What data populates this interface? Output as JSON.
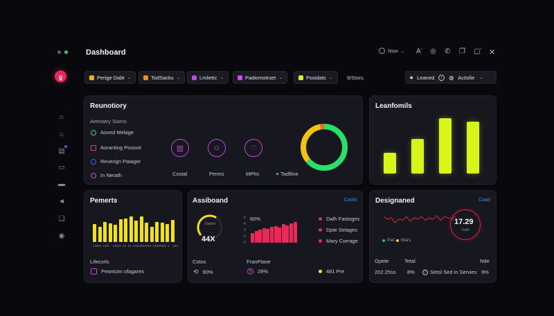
{
  "window": {
    "title": "Dashboard",
    "view_label": "Nsw",
    "user_label": "Leaned",
    "status_label": "Actisfie"
  },
  "filters": [
    {
      "label": "Perige Dabt",
      "color": "#f2b705"
    },
    {
      "label": "TodSacks",
      "color": "#ff8a1a"
    },
    {
      "label": "Lmlietic",
      "color": "#b44bff"
    },
    {
      "label": "Padiomotrset",
      "color": "#d048ff"
    },
    {
      "label": "Posidats",
      "color": "#d8f51a"
    }
  ],
  "filters_extra": "9/Stors",
  "reunotiory": {
    "title": "Reunotiory",
    "subtitle": "Aetmatry Sioms",
    "items": [
      {
        "label": "Aoved Melage",
        "color": "#3dd66b"
      },
      {
        "label": "Aoranting Posiool",
        "color": "#e0399a"
      },
      {
        "label": "Reverign Patager",
        "color": "#3a6cf0"
      },
      {
        "label": "In Nerath",
        "color": "#d84bd0"
      }
    ],
    "icons": [
      {
        "label": "Costal",
        "icon": "chart-icon",
        "glyph": "▥",
        "color": "#c04bd0"
      },
      {
        "label": "Perms",
        "icon": "face-icon",
        "glyph": "☺",
        "color": "#c04bd0"
      },
      {
        "label": "MPhs",
        "icon": "heart-icon",
        "glyph": "♡",
        "color": "#c04bd0"
      }
    ],
    "legend": "Tadfilne",
    "donut": {
      "green": 0.64,
      "yellow": 0.33,
      "orange": 0.03
    }
  },
  "leanfomils": {
    "title": "Leanfomils",
    "values": [
      26,
      43,
      68,
      64
    ]
  },
  "pemerts": {
    "title": "Pemerts",
    "values": [
      52,
      44,
      58,
      54,
      50,
      66,
      68,
      74,
      62,
      74,
      56,
      44,
      58,
      56,
      52,
      64
    ],
    "axis_ticks": [
      "140",
      "10",
      "140",
      "1",
      "140",
      "10",
      "10",
      "15",
      "140",
      "140",
      "140",
      "13",
      "140",
      "100",
      "10",
      "1",
      "100"
    ],
    "footer_label": "Lifecsrls",
    "footer_value": "Peanicim ofagares"
  },
  "assiboand": {
    "title": "Assiboand",
    "link": "Coold",
    "gauge_value": "44X",
    "gauge_caption": "Gasnd",
    "gauge_fraction": 0.45,
    "chart_value": "60%",
    "chart_ticks": [
      "6",
      "4",
      "0",
      "0",
      "0"
    ],
    "values": [
      42,
      48,
      55,
      62,
      58,
      66,
      70,
      64,
      78,
      74,
      82,
      88
    ],
    "legend": [
      {
        "label": "Dalh Fastoges",
        "color": "#f0255a"
      },
      {
        "label": "Dpte Selages",
        "color": "#f0255a"
      },
      {
        "label": "Mary Corrage",
        "color": "#f0255a"
      }
    ],
    "stats": [
      {
        "label": "Cotos",
        "value": "90%",
        "icon": "refresh-icon"
      },
      {
        "label": "FranPlane",
        "value": "29%",
        "icon": "dollar-icon"
      },
      {
        "label": "",
        "value": "481 Pre",
        "icon": "dot-icon"
      }
    ]
  },
  "designaned": {
    "title": "Designaned",
    "link": "Coad",
    "big_value": "17.29",
    "big_caption": "nun",
    "legend": [
      {
        "label": "Peil",
        "color": "#1fbf7a"
      },
      {
        "label": "Mars",
        "color": "#f2d60c"
      }
    ],
    "line": [
      12,
      10,
      11,
      7,
      10,
      9,
      12,
      8,
      11,
      10,
      12,
      9,
      11,
      10,
      13,
      9,
      12,
      11,
      10,
      12
    ],
    "stats": [
      {
        "label": "Opete",
        "value": "202.25ss"
      },
      {
        "label": "Tetal",
        "value": "8%"
      },
      {
        "label": "",
        "value": "Setol Sed in Servies"
      },
      {
        "label": "Nde",
        "value": "9%"
      }
    ]
  }
}
